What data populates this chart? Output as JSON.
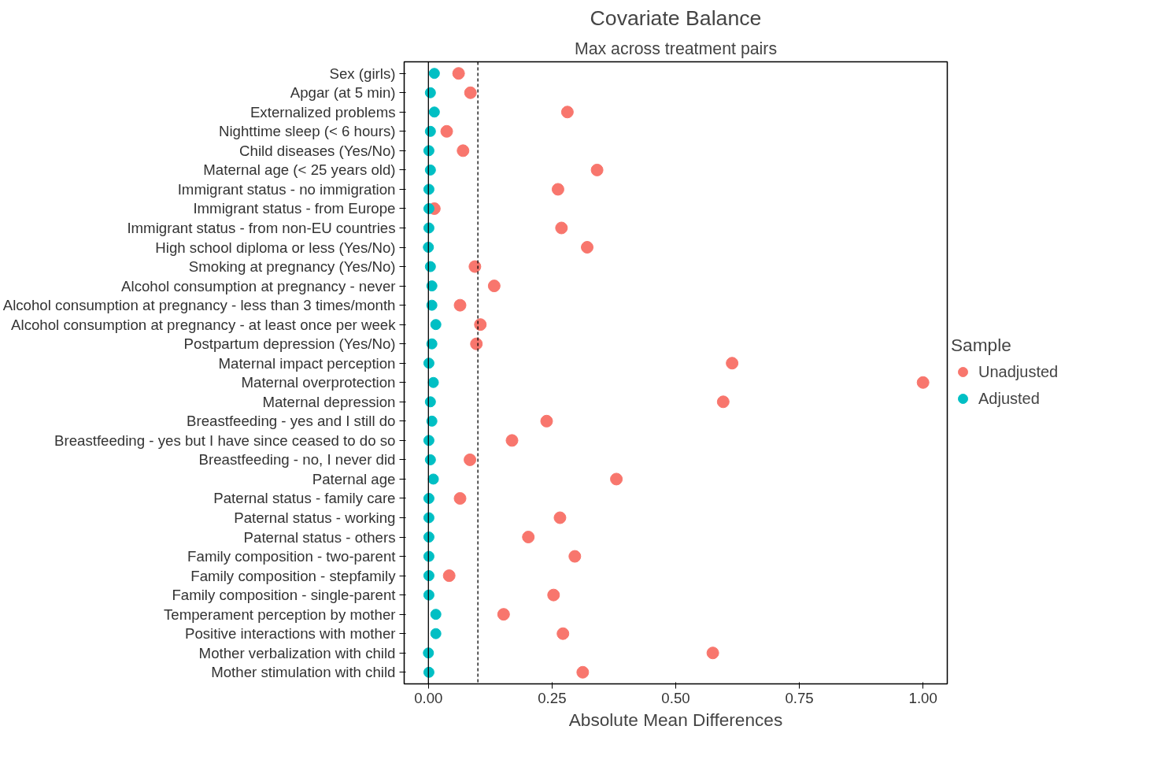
{
  "chart_data": {
    "type": "scatter",
    "orientation": "horizontal",
    "title": "Covariate Balance",
    "subtitle": "Max across treatment pairs",
    "xlabel": "Absolute Mean Differences",
    "legend_title": "Sample",
    "legend": "right",
    "grid": false,
    "marker": "circle",
    "categories": [
      "Sex (girls)",
      "Apgar (at 5 min)",
      "Externalized problems",
      "Nighttime sleep (< 6 hours)",
      "Child diseases (Yes/No)",
      "Maternal age (< 25 years old)",
      "Immigrant status - no immigration",
      "Immigrant status - from Europe",
      "Immigrant status - from non-EU countries",
      "High school diploma or less (Yes/No)",
      "Smoking at pregnancy (Yes/No)",
      "Alcohol consumption at pregnancy - never",
      "Alcohol consumption at pregnancy - less than 3 times/month",
      "Alcohol consumption at pregnancy - at least once per week",
      "Postpartum depression (Yes/No)",
      "Maternal impact perception",
      "Maternal overprotection",
      "Maternal depression",
      "Breastfeeding - yes and I still do",
      "Breastfeeding - yes but I have since ceased to do so",
      "Breastfeeding - no, I never did",
      "Paternal age",
      "Paternal status - family care",
      "Paternal status - working",
      "Paternal status - others",
      "Family composition - two-parent",
      "Family composition - stepfamily",
      "Family composition - single-parent",
      "Temperament perception by mother",
      "Positive interactions with mother",
      "Mother verbalization with child",
      "Mother stimulation with child"
    ],
    "series": [
      {
        "name": "Unadjusted",
        "color": "#f8766d",
        "values": [
          0.061,
          0.085,
          0.281,
          0.037,
          0.07,
          0.341,
          0.262,
          0.012,
          0.269,
          0.321,
          0.094,
          0.133,
          0.064,
          0.105,
          0.097,
          0.614,
          1.0,
          0.596,
          0.239,
          0.169,
          0.084,
          0.38,
          0.064,
          0.266,
          0.202,
          0.296,
          0.042,
          0.253,
          0.152,
          0.272,
          0.575,
          0.312
        ]
      },
      {
        "name": "Adjusted",
        "color": "#00bfc4",
        "values": [
          0.012,
          0.004,
          0.012,
          0.004,
          0.001,
          0.004,
          0.001,
          0.001,
          0.001,
          0.0,
          0.004,
          0.007,
          0.007,
          0.015,
          0.007,
          0.001,
          0.01,
          0.004,
          0.007,
          0.001,
          0.004,
          0.01,
          0.001,
          0.001,
          0.001,
          0.001,
          0.001,
          0.001,
          0.015,
          0.015,
          0.0,
          0.001
        ]
      }
    ],
    "xlim": [
      -0.049,
      1.049
    ],
    "xticks": [
      {
        "value": 0,
        "label": "0.00"
      },
      {
        "value": 0.25,
        "label": "0.25"
      },
      {
        "value": 0.5,
        "label": "0.50"
      },
      {
        "value": 0.75,
        "label": "0.75"
      },
      {
        "value": 1,
        "label": "1.00"
      }
    ],
    "ref_lines": [
      {
        "axis": "x",
        "value": 0,
        "label": null,
        "color": "#000000",
        "line_style": "solid"
      },
      {
        "axis": "x",
        "value": 0.1,
        "label": null,
        "color": "#000000",
        "line_style": "dashed"
      }
    ]
  }
}
